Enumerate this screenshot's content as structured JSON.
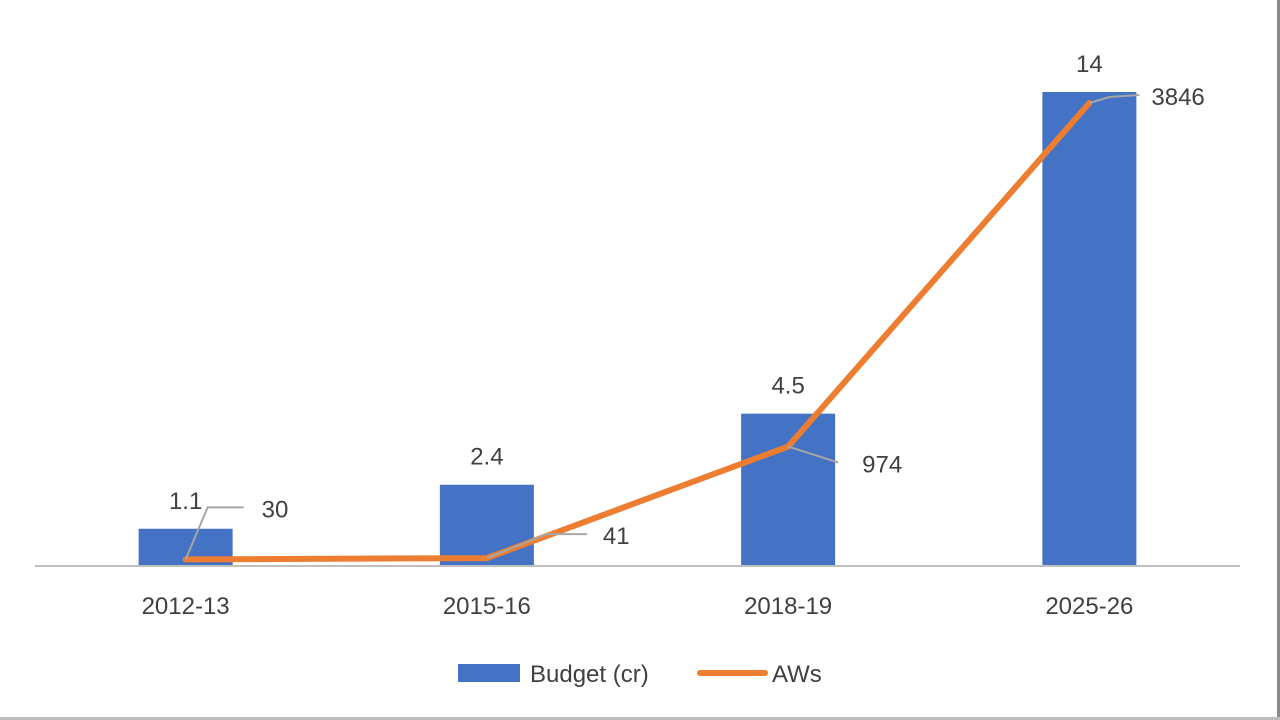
{
  "chart_data": {
    "type": "bar",
    "title": "",
    "xlabel": "",
    "ylabel": "",
    "categories": [
      "2012-13",
      "2015-16",
      "2018-19",
      "2025-26"
    ],
    "series": [
      {
        "name": "Budget (cr)",
        "type": "bar",
        "values": [
          1.1,
          2.4,
          4.5,
          14
        ],
        "labels": [
          "1.1",
          "2.4",
          "4.5",
          "14"
        ],
        "color": "#4472C4"
      },
      {
        "name": "AWs",
        "type": "line",
        "values": [
          30,
          41,
          974,
          3846
        ],
        "labels": [
          "30",
          "41",
          "974",
          "3846"
        ],
        "color": "#ED7D31",
        "axis": "secondary"
      }
    ],
    "primary_axis_range": [
      0,
      14
    ],
    "secondary_axis_range": [
      0,
      3846
    ],
    "legend_position": "bottom",
    "axis_line_color": "#bfbfbf",
    "leader_line_color": "#a6a6a6",
    "grid": false
  }
}
